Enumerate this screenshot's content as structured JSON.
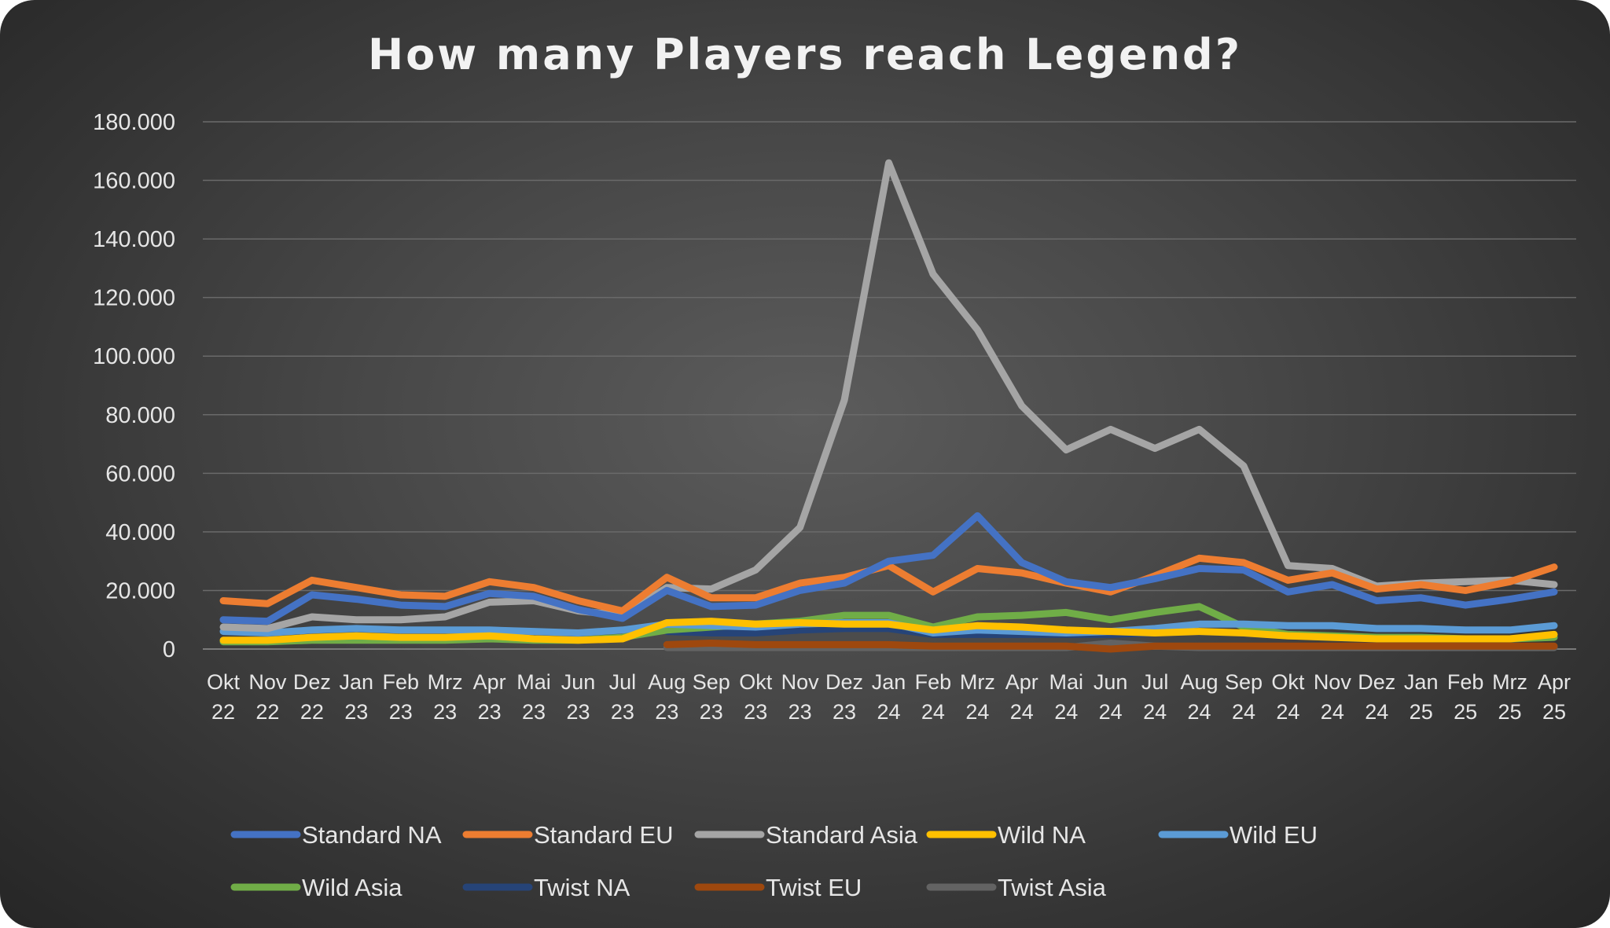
{
  "chart_data": {
    "type": "line",
    "title": "How many Players reach Legend?",
    "xlabel": "",
    "ylabel": "",
    "ylim": [
      0,
      180000
    ],
    "yticks": [
      0,
      20000,
      40000,
      60000,
      80000,
      100000,
      120000,
      140000,
      160000,
      180000
    ],
    "ytick_labels": [
      "0",
      "20.000",
      "40.000",
      "60.000",
      "80.000",
      "100.000",
      "120.000",
      "140.000",
      "160.000",
      "180.000"
    ],
    "grid": true,
    "legend_position": "bottom",
    "categories": [
      [
        "Okt",
        "22"
      ],
      [
        "Nov",
        "22"
      ],
      [
        "Dez",
        "22"
      ],
      [
        "Jan",
        "23"
      ],
      [
        "Feb",
        "23"
      ],
      [
        "Mrz",
        "23"
      ],
      [
        "Apr",
        "23"
      ],
      [
        "Mai",
        "23"
      ],
      [
        "Jun",
        "23"
      ],
      [
        "Jul",
        "23"
      ],
      [
        "Aug",
        "23"
      ],
      [
        "Sep",
        "23"
      ],
      [
        "Okt",
        "23"
      ],
      [
        "Nov",
        "23"
      ],
      [
        "Dez",
        "23"
      ],
      [
        "Jan",
        "24"
      ],
      [
        "Feb",
        "24"
      ],
      [
        "Mrz",
        "24"
      ],
      [
        "Apr",
        "24"
      ],
      [
        "Mai",
        "24"
      ],
      [
        "Jun",
        "24"
      ],
      [
        "Jul",
        "24"
      ],
      [
        "Aug",
        "24"
      ],
      [
        "Sep",
        "24"
      ],
      [
        "Okt",
        "24"
      ],
      [
        "Nov",
        "24"
      ],
      [
        "Dez",
        "24"
      ],
      [
        "Jan",
        "25"
      ],
      [
        "Feb",
        "25"
      ],
      [
        "Mrz",
        "25"
      ],
      [
        "Apr",
        "25"
      ]
    ],
    "series": [
      {
        "name": "Standard NA",
        "color": "#4472c4",
        "values": [
          10000,
          9500,
          18500,
          17000,
          15000,
          14500,
          19000,
          18000,
          13500,
          10500,
          20000,
          14500,
          15000,
          20000,
          22500,
          30000,
          32000,
          45500,
          29500,
          23000,
          21000,
          24000,
          27500,
          27000,
          19500,
          22000,
          16500,
          17500,
          15000,
          17000,
          19500
        ]
      },
      {
        "name": "Standard EU",
        "color": "#ed7d31",
        "values": [
          16500,
          15500,
          23500,
          21000,
          18500,
          18000,
          23000,
          21000,
          16500,
          13000,
          24500,
          17500,
          17500,
          22500,
          24500,
          28500,
          19500,
          27500,
          26000,
          22500,
          19500,
          25000,
          31000,
          29500,
          23500,
          26000,
          20500,
          22000,
          20000,
          23000,
          28000
        ]
      },
      {
        "name": "Standard Asia",
        "color": "#a5a5a5",
        "values": [
          7500,
          7000,
          11000,
          10000,
          10000,
          11000,
          16000,
          16500,
          13000,
          11500,
          21000,
          20500,
          27000,
          41500,
          85000,
          166000,
          128000,
          109000,
          83000,
          68000,
          75000,
          68500,
          75000,
          62500,
          28500,
          27500,
          21500,
          22500,
          23000,
          23500,
          22000
        ]
      },
      {
        "name": "Wild NA",
        "color": "#ffc000",
        "values": [
          3000,
          3000,
          4000,
          4500,
          4000,
          4000,
          4500,
          3500,
          3000,
          3500,
          9000,
          9500,
          8500,
          9000,
          8500,
          8500,
          6500,
          8000,
          7500,
          6500,
          6000,
          5500,
          6000,
          5500,
          4500,
          4000,
          3500,
          3500,
          3500,
          3500,
          5000
        ]
      },
      {
        "name": "Wild EU",
        "color": "#5b9bd5",
        "values": [
          6000,
          5500,
          6500,
          7000,
          6500,
          6500,
          6500,
          6000,
          5500,
          6500,
          8500,
          8000,
          7500,
          8500,
          9000,
          9000,
          5500,
          6500,
          6000,
          5500,
          6000,
          7000,
          8500,
          8500,
          8000,
          8000,
          7000,
          7000,
          6500,
          6500,
          8000
        ]
      },
      {
        "name": "Wild Asia",
        "color": "#70ad47",
        "values": [
          2500,
          2500,
          3000,
          3000,
          3000,
          3000,
          3500,
          3000,
          3000,
          4000,
          6500,
          7500,
          8500,
          9500,
          11500,
          11500,
          7500,
          11000,
          11500,
          12500,
          10000,
          12500,
          14500,
          7500,
          5000,
          4500,
          4000,
          4000,
          3500,
          3500,
          4000
        ]
      },
      {
        "name": "Twist NA",
        "color": "#264478",
        "values": [
          null,
          null,
          null,
          null,
          null,
          null,
          null,
          null,
          null,
          null,
          6000,
          5500,
          5500,
          6500,
          7000,
          7000,
          5000,
          5000,
          5000,
          5000,
          5000,
          5500,
          6000,
          5500,
          4500,
          4000,
          3500,
          3500,
          3500,
          3500,
          4000
        ]
      },
      {
        "name": "Twist EU",
        "color": "#9e480e",
        "values": [
          null,
          null,
          null,
          null,
          null,
          null,
          null,
          null,
          null,
          null,
          1500,
          2000,
          1500,
          1500,
          1500,
          1500,
          1000,
          1000,
          1000,
          1000,
          0,
          1000,
          1000,
          1000,
          1000,
          1000,
          1000,
          1000,
          1000,
          1000,
          1000
        ]
      },
      {
        "name": "Twist Asia",
        "color": "#636363",
        "values": [
          null,
          null,
          null,
          null,
          null,
          null,
          null,
          null,
          null,
          null,
          500,
          500,
          500,
          500,
          500,
          500,
          500,
          500,
          500,
          500,
          2000,
          1000,
          500,
          500,
          500,
          500,
          500,
          500,
          500,
          500,
          500
        ]
      }
    ]
  }
}
